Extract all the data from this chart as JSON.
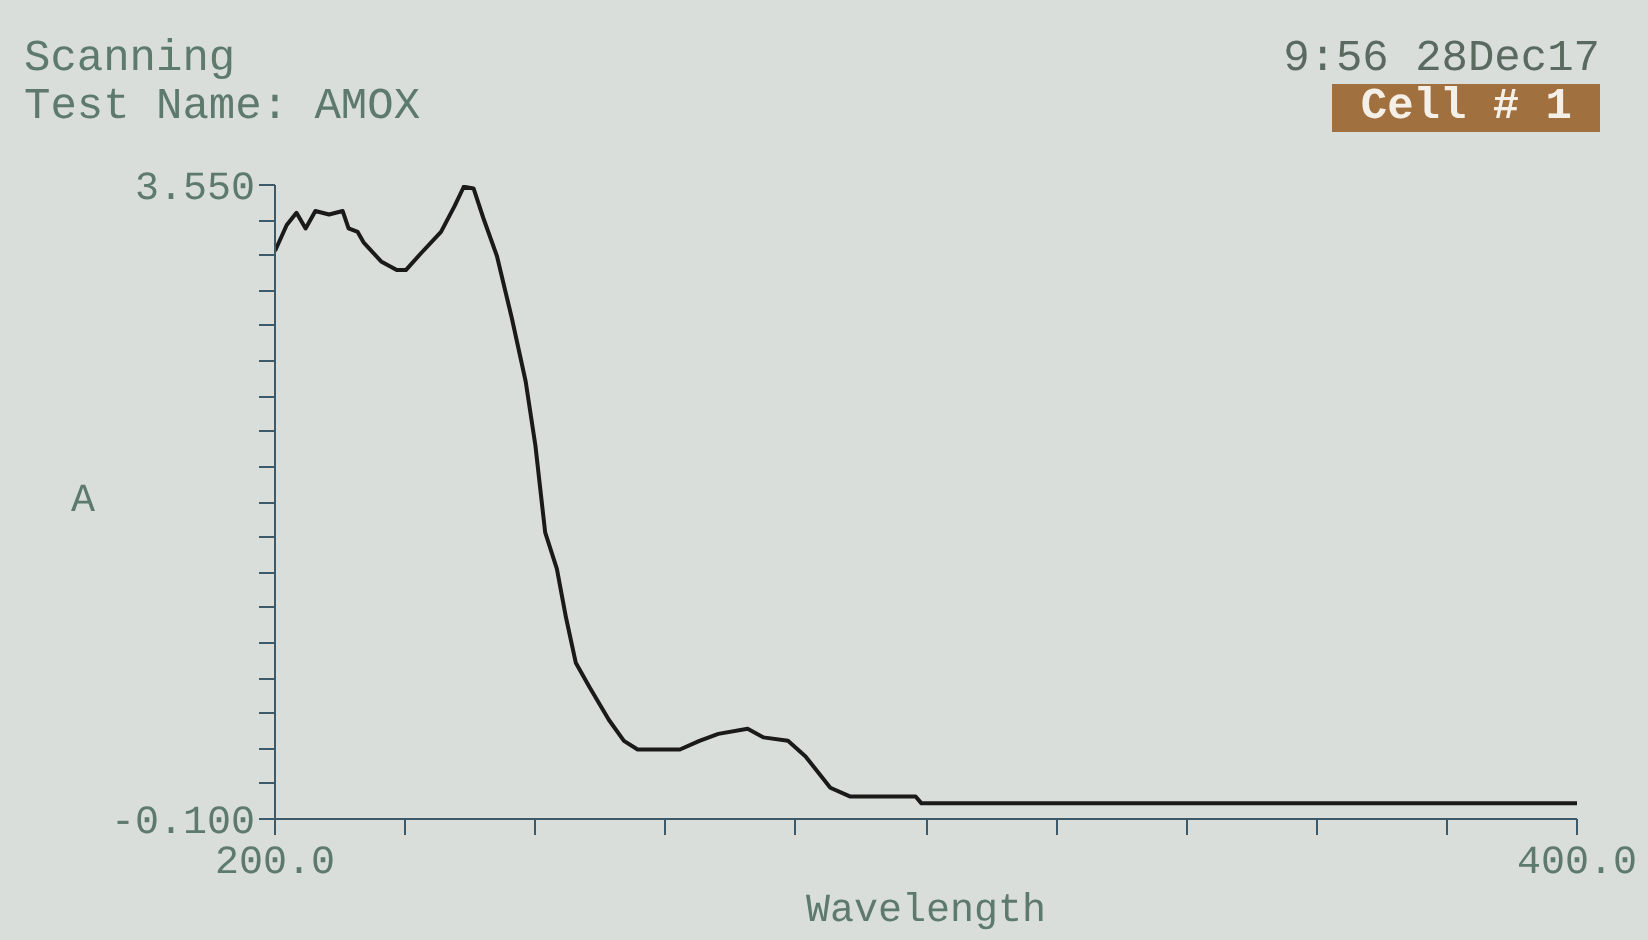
{
  "chart_data": {
    "type": "line",
    "title": "Scanning",
    "subtitle": "Test Name: AMOX",
    "xlabel": "Wavelength",
    "ylabel": "A",
    "annotations": [
      "9:56 28Dec17",
      "Cell # 1"
    ],
    "x": [
      200,
      201.8,
      203.3,
      204.7,
      206.2,
      208.3,
      210.4,
      211.3,
      212.7,
      213.6,
      216.3,
      218.7,
      220.1,
      222.5,
      225.5,
      227.6,
      229.0,
      230.5,
      232.0,
      234.1,
      236.4,
      238.5,
      240.0,
      241.5,
      243.3,
      244.7,
      246.2,
      248.3,
      251.3,
      253.6,
      255.7,
      262.2,
      265.2,
      268.1,
      272.6,
      275.0,
      278.8,
      281.5,
      285.3,
      288.3,
      298.4,
      299.3,
      400
    ],
    "series": [
      {
        "color": "#1a1a1a",
        "values": [
          3.17,
          3.32,
          3.39,
          3.3,
          3.4,
          3.38,
          3.4,
          3.3,
          3.28,
          3.22,
          3.11,
          3.06,
          3.06,
          3.16,
          3.28,
          3.43,
          3.54,
          3.53,
          3.36,
          3.14,
          2.78,
          2.42,
          2.05,
          1.55,
          1.34,
          1.06,
          0.8,
          0.66,
          0.47,
          0.35,
          0.3,
          0.3,
          0.35,
          0.39,
          0.42,
          0.37,
          0.35,
          0.26,
          0.08,
          0.03,
          0.03,
          -0.01,
          -0.01
        ]
      }
    ],
    "xlim": [
      200,
      400
    ],
    "ylim": [
      -0.1,
      3.55
    ],
    "xticks": [
      {
        "value": 200,
        "label": "200.0"
      },
      {
        "value": 220,
        "label": null
      },
      {
        "value": 240,
        "label": null
      },
      {
        "value": 260,
        "label": null
      },
      {
        "value": 280,
        "label": null
      },
      {
        "value": 300,
        "label": null
      },
      {
        "value": 320,
        "label": null
      },
      {
        "value": 340,
        "label": null
      },
      {
        "value": 360,
        "label": null
      },
      {
        "value": 380,
        "label": null
      },
      {
        "value": 400,
        "label": "400.0"
      }
    ],
    "yticks": [
      {
        "value": -0.1,
        "label": "-0.100"
      },
      {
        "value": 0.103,
        "label": null
      },
      {
        "value": 0.306,
        "label": null
      },
      {
        "value": 0.508,
        "label": null
      },
      {
        "value": 0.711,
        "label": null
      },
      {
        "value": 0.914,
        "label": null
      },
      {
        "value": 1.117,
        "label": null
      },
      {
        "value": 1.319,
        "label": null
      },
      {
        "value": 1.522,
        "label": null
      },
      {
        "value": 1.725,
        "label": null
      },
      {
        "value": 1.928,
        "label": null
      },
      {
        "value": 2.131,
        "label": null
      },
      {
        "value": 2.333,
        "label": null
      },
      {
        "value": 2.536,
        "label": null
      },
      {
        "value": 2.739,
        "label": null
      },
      {
        "value": 2.942,
        "label": null
      },
      {
        "value": 3.144,
        "label": null
      },
      {
        "value": 3.347,
        "label": null
      },
      {
        "value": 3.55,
        "label": "3.550"
      }
    ],
    "grid": false,
    "marker": "none",
    "line_style": "solid"
  }
}
